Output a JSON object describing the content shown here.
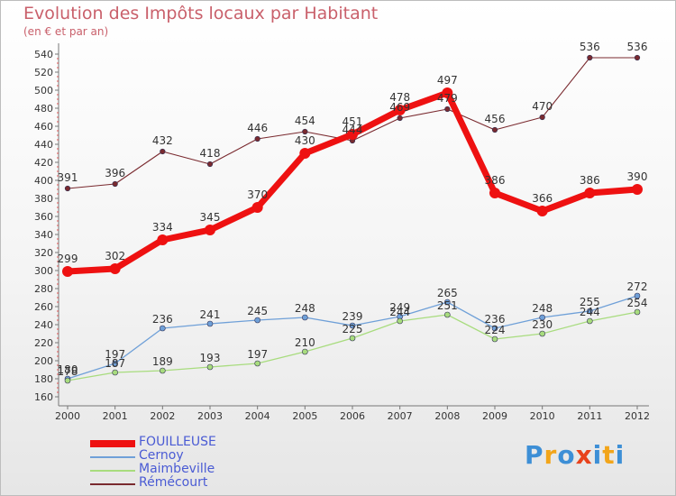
{
  "title": "Evolution des Impôts locaux par Habitant",
  "subtitle": "(en € et par an)",
  "brand": {
    "letters": [
      "P",
      "r",
      "o",
      "x",
      "i",
      "t",
      "i"
    ],
    "colors": [
      "#3d8fd6",
      "#f2a51a",
      "#3d8fd6",
      "#e8421c",
      "#3d8fd6",
      "#f2a51a",
      "#3d8fd6"
    ]
  },
  "chart_data": {
    "type": "line",
    "title": "Evolution des Impôts locaux par Habitant",
    "subtitle": "(en € et par an)",
    "x": [
      "2000",
      "2001",
      "2002",
      "2003",
      "2004",
      "2005",
      "2006",
      "2007",
      "2008",
      "2009",
      "2010",
      "2011",
      "2012"
    ],
    "ylim": [
      160,
      540
    ],
    "yticks": [
      160,
      180,
      200,
      220,
      240,
      260,
      280,
      300,
      320,
      340,
      360,
      380,
      400,
      420,
      440,
      460,
      480,
      500,
      520,
      540
    ],
    "grid": false,
    "legend_position": "bottom-left",
    "series": [
      {
        "name": "FOUILLEUSE",
        "color": "#ee1111",
        "values": [
          299,
          302,
          334,
          345,
          370,
          430,
          451,
          478,
          497,
          386,
          366,
          386,
          390
        ]
      },
      {
        "name": "Cernoy",
        "color": "#6fa0d8",
        "values": [
          180,
          197,
          236,
          241,
          245,
          248,
          239,
          249,
          265,
          236,
          248,
          255,
          272
        ]
      },
      {
        "name": "Maimbeville",
        "color": "#a8dc7e",
        "values": [
          178,
          187,
          189,
          193,
          197,
          210,
          225,
          244,
          251,
          224,
          230,
          244,
          254
        ]
      },
      {
        "name": "Rémécourt",
        "color": "#7a2a2f",
        "values": [
          391,
          396,
          432,
          418,
          446,
          454,
          444,
          469,
          479,
          456,
          470,
          536,
          536
        ]
      }
    ]
  }
}
